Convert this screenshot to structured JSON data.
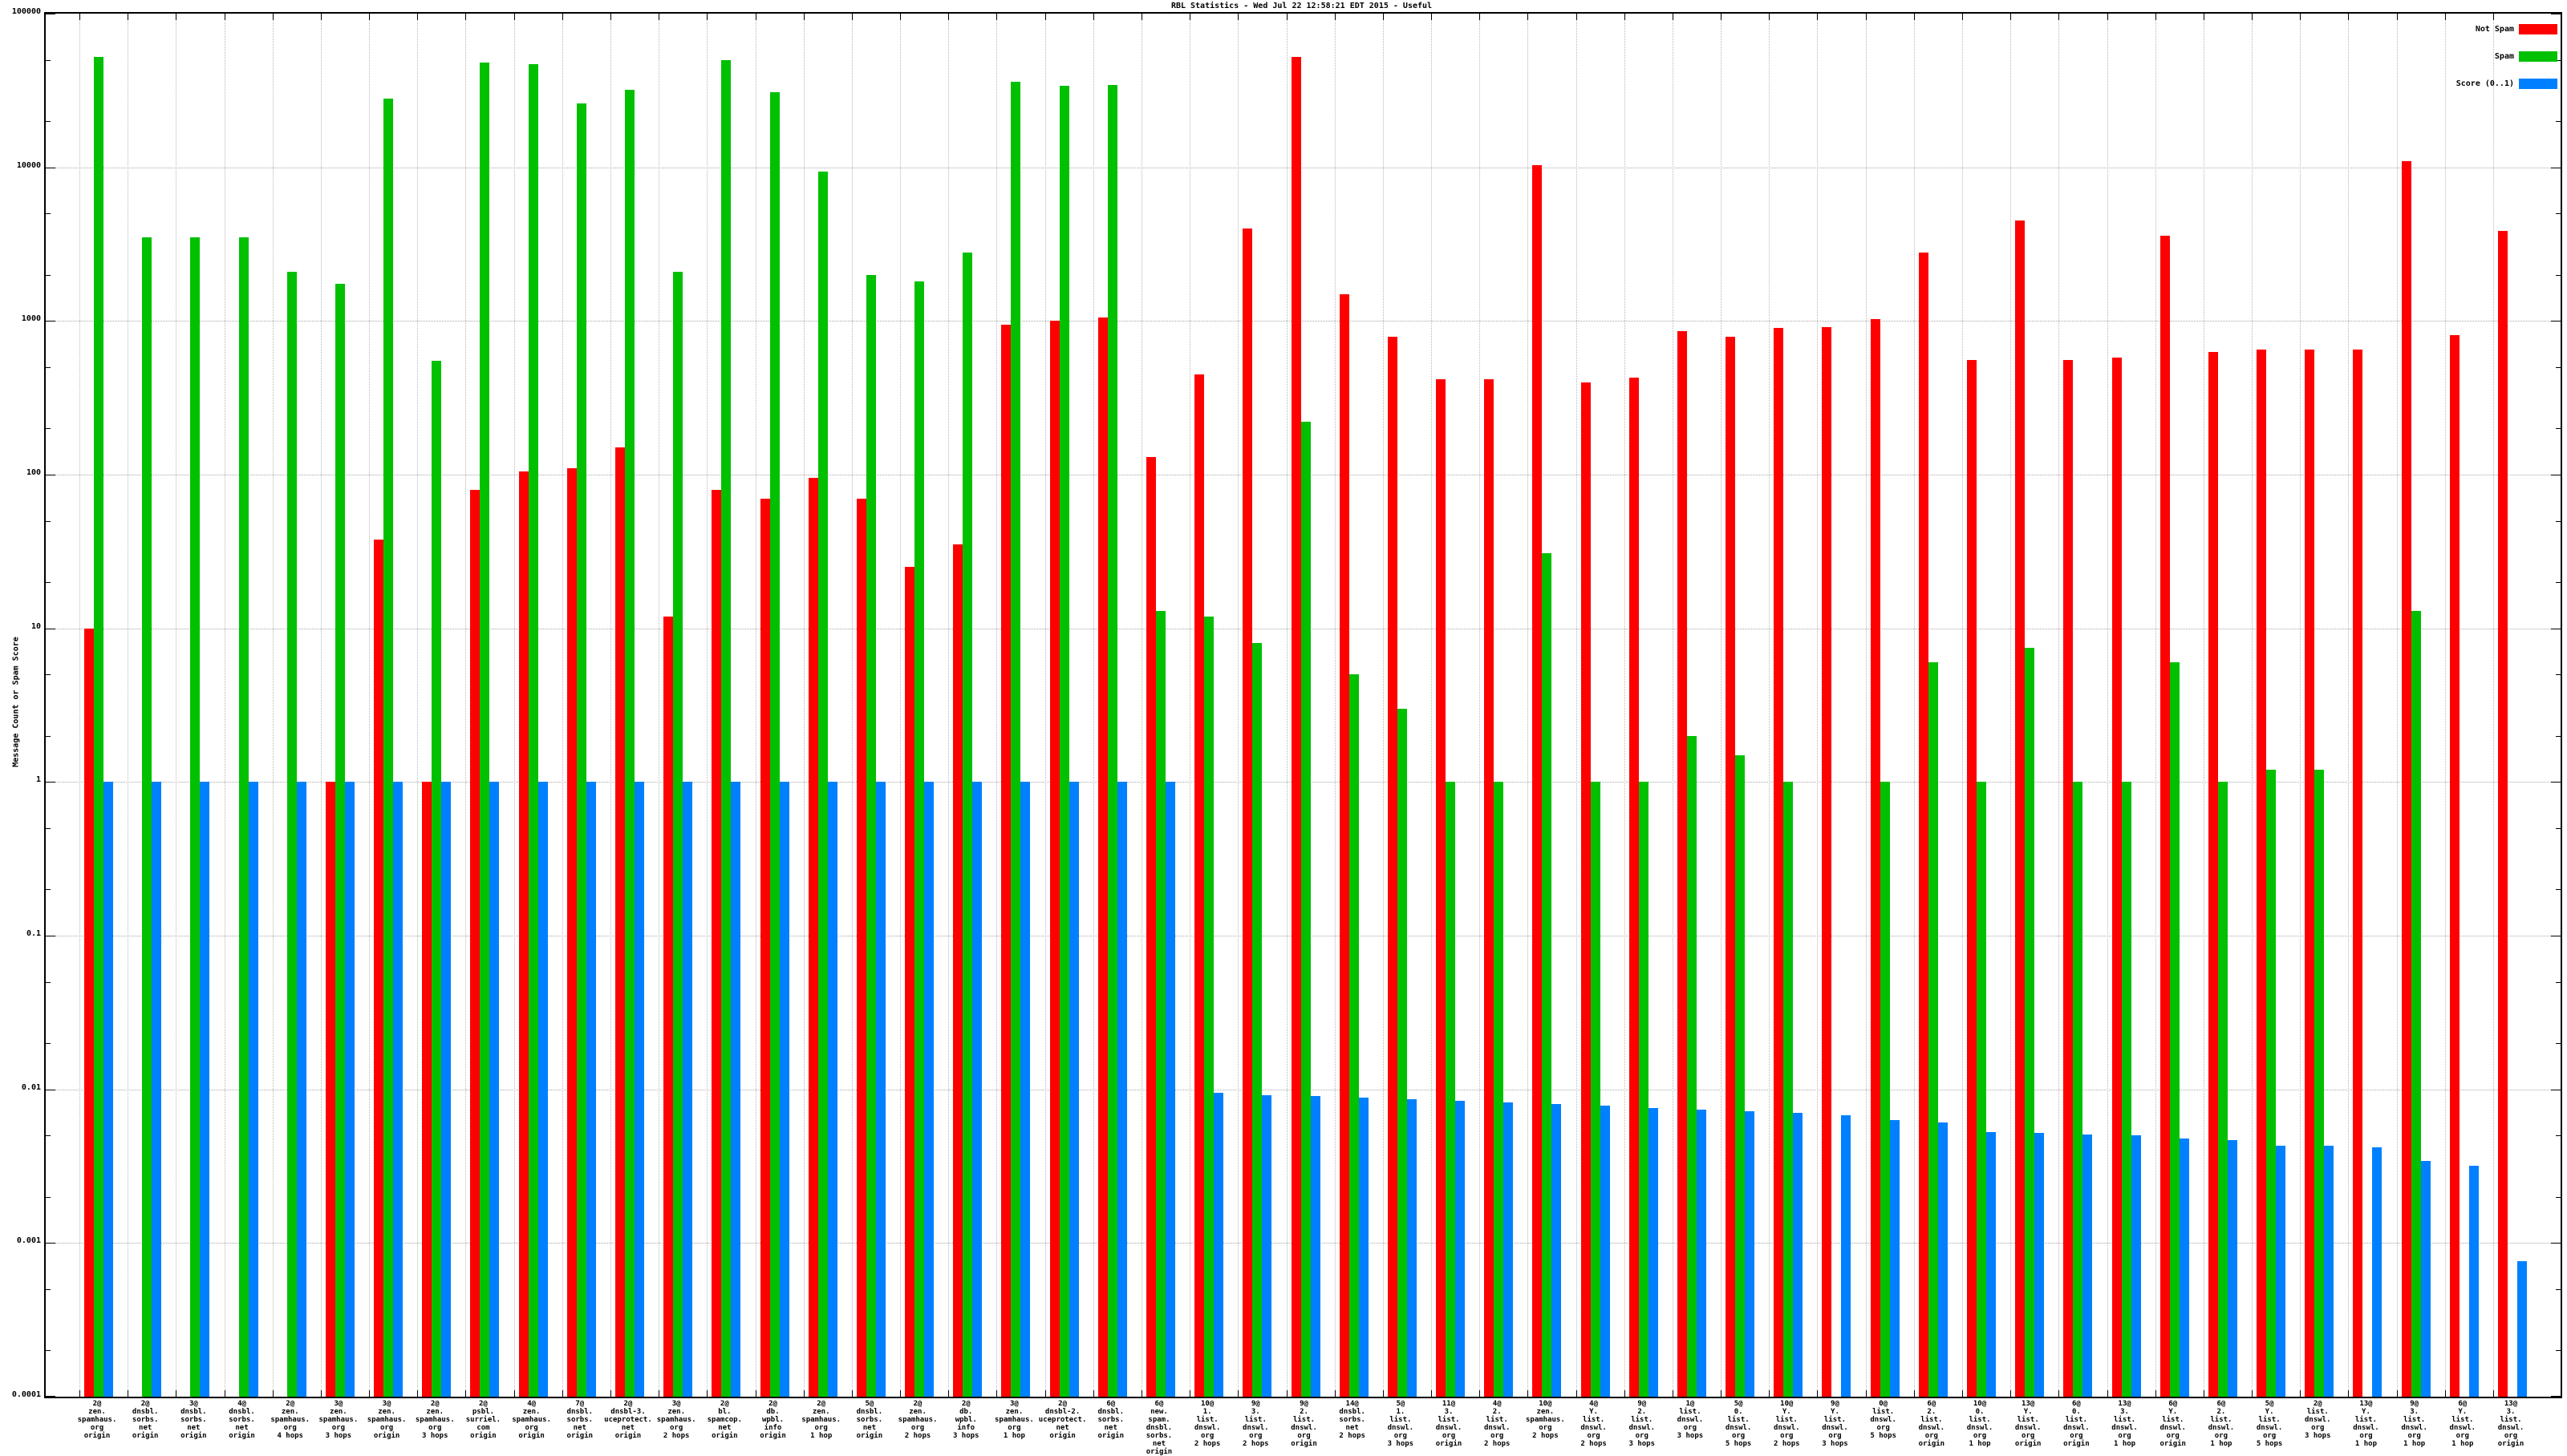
{
  "chart_data": {
    "type": "bar",
    "title": "RBL Statistics - Wed Jul 22 12:58:21 EDT 2015 - Useful",
    "ylabel": "Message Count or Spam Score",
    "xlabel": "",
    "log_scale_y": true,
    "ylim": [
      0.0001,
      100000
    ],
    "y_ticks": [
      "100000",
      "10000",
      "1000",
      "100",
      "10",
      "1",
      "0.1",
      "0.01",
      "0.001",
      "0.0001"
    ],
    "grid": {
      "horizontal": "dotted line at each decade",
      "vertical": "dotted line at each category boundary"
    },
    "legend_position": "top-right",
    "legend": [
      {
        "label": "Not Spam",
        "color": "#ff0000"
      },
      {
        "label": "Spam",
        "color": "#00c000"
      },
      {
        "label": "Score (0..1)",
        "color": "#0080ff"
      }
    ],
    "categories": [
      [
        "2@",
        "zen.",
        "spamhaus.",
        "org",
        "origin"
      ],
      [
        "2@",
        "dnsbl.",
        "sorbs.",
        "net",
        "origin"
      ],
      [
        "3@",
        "dnsbl.",
        "sorbs.",
        "net",
        "origin"
      ],
      [
        "4@",
        "dnsbl.",
        "sorbs.",
        "net",
        "origin"
      ],
      [
        "2@",
        "zen.",
        "spamhaus.",
        "org",
        "4 hops"
      ],
      [
        "3@",
        "zen.",
        "spamhaus.",
        "org",
        "3 hops"
      ],
      [
        "3@",
        "zen.",
        "spamhaus.",
        "org",
        "origin"
      ],
      [
        "2@",
        "zen.",
        "spamhaus.",
        "org",
        "3 hops"
      ],
      [
        "2@",
        "psbl.",
        "surriel.",
        "com",
        "origin"
      ],
      [
        "4@",
        "zen.",
        "spamhaus.",
        "org",
        "origin"
      ],
      [
        "7@",
        "dnsbl.",
        "sorbs.",
        "net",
        "origin"
      ],
      [
        "2@",
        "dnsbl-3.",
        "uceprotect.",
        "net",
        "origin"
      ],
      [
        "3@",
        "zen.",
        "spamhaus.",
        "org",
        "2 hops"
      ],
      [
        "2@",
        "bl.",
        "spamcop.",
        "net",
        "origin"
      ],
      [
        "2@",
        "db.",
        "wpbl.",
        "info",
        "origin"
      ],
      [
        "2@",
        "zen.",
        "spamhaus.",
        "org",
        "1 hop"
      ],
      [
        "5@",
        "dnsbl.",
        "sorbs.",
        "net",
        "origin"
      ],
      [
        "2@",
        "zen.",
        "spamhaus.",
        "org",
        "2 hops"
      ],
      [
        "2@",
        "db.",
        "wpbl.",
        "info",
        "3 hops"
      ],
      [
        "3@",
        "zen.",
        "spamhaus.",
        "org",
        "1 hop"
      ],
      [
        "2@",
        "dnsbl-2.",
        "uceprotect.",
        "net",
        "origin"
      ],
      [
        "6@",
        "dnsbl.",
        "sorbs.",
        "net",
        "origin"
      ],
      [
        "6@",
        "new.",
        "spam.",
        "dnsbl.",
        "sorbs.",
        "net",
        "origin"
      ],
      [
        "10@",
        "1.",
        "list.",
        "dnswl.",
        "org",
        "2 hops"
      ],
      [
        "9@",
        "3.",
        "list.",
        "dnswl.",
        "org",
        "2 hops"
      ],
      [
        "9@",
        "2.",
        "list.",
        "dnswl.",
        "org",
        "origin"
      ],
      [
        "14@",
        "dnsbl.",
        "sorbs.",
        "net",
        "2 hops"
      ],
      [
        "5@",
        "1.",
        "list.",
        "dnswl.",
        "org",
        "3 hops"
      ],
      [
        "11@",
        "3.",
        "list.",
        "dnswl.",
        "org",
        "origin"
      ],
      [
        "4@",
        "2.",
        "list.",
        "dnswl.",
        "org",
        "2 hops"
      ],
      [
        "10@",
        "zen.",
        "spamhaus.",
        "org",
        "2 hops"
      ],
      [
        "4@",
        "Y.",
        "list.",
        "dnswl.",
        "org",
        "2 hops"
      ],
      [
        "9@",
        "2.",
        "list.",
        "dnswl.",
        "org",
        "3 hops"
      ],
      [
        "1@",
        "list.",
        "dnswl.",
        "org",
        "3 hops"
      ],
      [
        "5@",
        "0.",
        "list.",
        "dnswl.",
        "org",
        "5 hops"
      ],
      [
        "10@",
        "Y.",
        "list.",
        "dnswl.",
        "org",
        "2 hops"
      ],
      [
        "9@",
        "Y.",
        "list.",
        "dnswl.",
        "org",
        "3 hops"
      ],
      [
        "0@",
        "list.",
        "dnswl.",
        "org",
        "5 hops"
      ],
      [
        "6@",
        "2.",
        "list.",
        "dnswl.",
        "org",
        "origin"
      ],
      [
        "10@",
        "0.",
        "list.",
        "dnswl.",
        "org",
        "1 hop"
      ],
      [
        "13@",
        "Y.",
        "list.",
        "dnswl.",
        "org",
        "origin"
      ],
      [
        "6@",
        "0.",
        "list.",
        "dnswl.",
        "org",
        "origin"
      ],
      [
        "13@",
        "3.",
        "list.",
        "dnswl.",
        "org",
        "1 hop"
      ],
      [
        "6@",
        "Y.",
        "list.",
        "dnswl.",
        "org",
        "origin"
      ],
      [
        "6@",
        "2.",
        "list.",
        "dnswl.",
        "org",
        "1 hop"
      ],
      [
        "5@",
        "Y.",
        "list.",
        "dnswl.",
        "org",
        "5 hops"
      ],
      [
        "2@",
        "list.",
        "dnswl.",
        "org",
        "3 hops"
      ],
      [
        "13@",
        "Y.",
        "list.",
        "dnswl.",
        "org",
        "1 hop"
      ],
      [
        "9@",
        "3.",
        "list.",
        "dnswl.",
        "org",
        "1 hop"
      ],
      [
        "6@",
        "Y.",
        "list.",
        "dnswl.",
        "org",
        "1 hop"
      ],
      [
        "13@",
        "3.",
        "list.",
        "dnswl.",
        "org",
        "origin"
      ]
    ],
    "series": [
      {
        "name": "Not Spam",
        "color": "#ff0000",
        "values": [
          10,
          0,
          0,
          0,
          0,
          1,
          38,
          1,
          80,
          105,
          110,
          150,
          12,
          80,
          70,
          95,
          70,
          25,
          35,
          950,
          1000,
          1050,
          130,
          450,
          4000,
          52000,
          1500,
          790,
          420,
          420,
          10300,
          400,
          430,
          860,
          790,
          900,
          910,
          1030,
          2800,
          560,
          4500,
          560,
          575,
          3600,
          630,
          650,
          650,
          655,
          11000,
          810,
          3850
        ]
      },
      {
        "name": "Spam",
        "color": "#00c000",
        "values": [
          52000,
          3500,
          3500,
          3500,
          2100,
          1750,
          28000,
          550,
          48000,
          47000,
          26000,
          32000,
          2100,
          50000,
          31000,
          9400,
          2000,
          1800,
          2800,
          36000,
          34000,
          34500,
          13,
          12,
          8,
          220,
          5,
          3,
          1,
          1,
          31,
          1,
          1,
          2,
          1.5,
          1,
          0,
          1,
          6,
          1,
          7.5,
          1,
          1,
          6,
          1,
          1.2,
          1.2,
          0,
          13,
          0,
          0
        ]
      },
      {
        "name": "Score (0..1)",
        "color": "#0080ff",
        "values": [
          1,
          1,
          1,
          1,
          1,
          1,
          1,
          1,
          1,
          1,
          1,
          1,
          1,
          1,
          1,
          1,
          1,
          1,
          1,
          1,
          1,
          1,
          1,
          0.0095,
          0.0092,
          0.009,
          0.0088,
          0.0086,
          0.0084,
          0.0082,
          0.008,
          0.0078,
          0.0076,
          0.0074,
          0.0072,
          0.007,
          0.0068,
          0.0063,
          0.0061,
          0.0053,
          0.0052,
          0.0051,
          0.005,
          0.0048,
          0.0047,
          0.0043,
          0.0043,
          0.0042,
          0.0034,
          0.0032,
          0.00076
        ]
      }
    ]
  }
}
